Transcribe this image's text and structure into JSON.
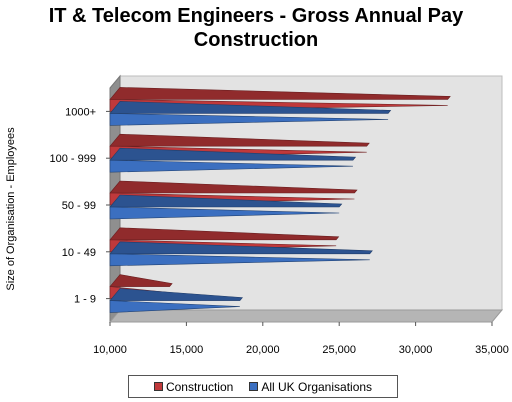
{
  "chart_data": {
    "type": "bar",
    "orientation": "horizontal",
    "title": "IT & Telecom Engineers - Gross Annual Pay",
    "subtitle": "Construction",
    "xlabel": "",
    "ylabel": "Size of Organisation - Employees",
    "categories": [
      "1 - 9",
      "10 - 49",
      "50 - 99",
      "100 - 999",
      "1000+"
    ],
    "series": [
      {
        "name": "Construction",
        "values": [
          13900,
          24800,
          26000,
          26800,
          32100
        ],
        "color": "#c0393b"
      },
      {
        "name": "All UK Organisations",
        "values": [
          18500,
          27000,
          25000,
          25900,
          28200
        ],
        "color": "#3b6fc0"
      }
    ],
    "xlim": [
      10000,
      35000
    ],
    "xticks": [
      "10,000",
      "15,000",
      "20,000",
      "25,000",
      "30,000",
      "35,000"
    ],
    "grid": false,
    "style": "3d",
    "legend_position": "bottom"
  }
}
